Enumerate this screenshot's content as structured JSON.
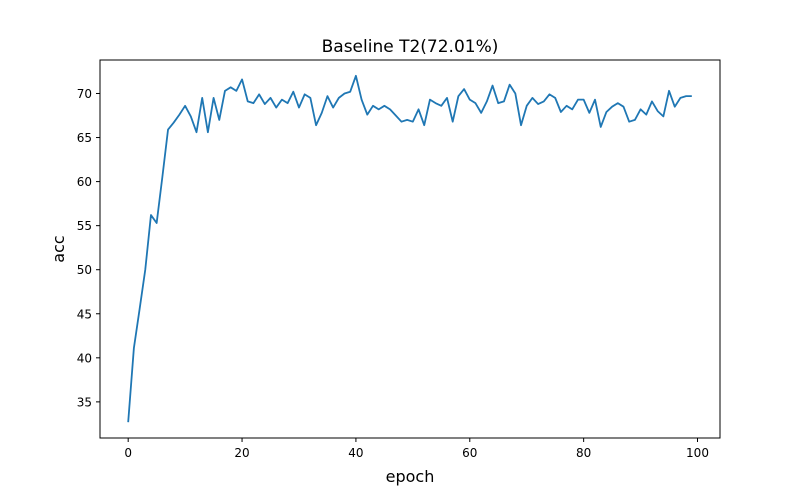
{
  "chart_data": {
    "type": "line",
    "title": "Baseline T2(72.01%)",
    "xlabel": "epoch",
    "ylabel": "acc",
    "xlim": [
      -4.95,
      103.95
    ],
    "ylim": [
      30.9,
      73.8
    ],
    "xticks": [
      0,
      20,
      40,
      60,
      80,
      100
    ],
    "yticks": [
      35,
      40,
      45,
      50,
      55,
      60,
      65,
      70
    ],
    "grid": false,
    "legend": "none",
    "line_color": "#1f77b4",
    "series": [
      {
        "x": [
          0,
          1,
          2,
          3,
          4,
          5,
          6,
          7,
          8,
          9,
          10,
          11,
          12,
          13,
          14,
          15,
          16,
          17,
          18,
          19,
          20,
          21,
          22,
          23,
          24,
          25,
          26,
          27,
          28,
          29,
          30,
          31,
          32,
          33,
          34,
          35,
          36,
          37,
          38,
          39,
          40,
          41,
          42,
          43,
          44,
          45,
          46,
          47,
          48,
          49,
          50,
          51,
          52,
          53,
          54,
          55,
          56,
          57,
          58,
          59,
          60,
          61,
          62,
          63,
          64,
          65,
          66,
          67,
          68,
          69,
          70,
          71,
          72,
          73,
          74,
          75,
          76,
          77,
          78,
          79,
          80,
          81,
          82,
          83,
          84,
          85,
          86,
          87,
          88,
          89,
          90,
          91,
          92,
          93,
          94,
          95,
          96,
          97,
          98,
          99
        ],
        "values": [
          32.7,
          41.1,
          45.5,
          50.0,
          56.2,
          55.3,
          60.5,
          65.9,
          66.7,
          67.6,
          68.6,
          67.4,
          65.6,
          69.5,
          65.6,
          69.5,
          67.0,
          70.3,
          70.7,
          70.3,
          71.6,
          69.1,
          68.9,
          69.9,
          68.8,
          69.5,
          68.4,
          69.3,
          68.9,
          70.2,
          68.4,
          69.9,
          69.5,
          66.4,
          67.8,
          69.7,
          68.4,
          69.5,
          70.0,
          70.2,
          72.0,
          69.3,
          67.6,
          68.6,
          68.2,
          68.6,
          68.2,
          67.5,
          66.8,
          67.0,
          66.8,
          68.2,
          66.4,
          69.3,
          68.9,
          68.6,
          69.5,
          66.8,
          69.7,
          70.5,
          69.3,
          68.9,
          67.8,
          69.1,
          70.9,
          68.9,
          69.1,
          71.0,
          70.0,
          66.4,
          68.6,
          69.5,
          68.8,
          69.1,
          69.9,
          69.5,
          67.9,
          68.6,
          68.2,
          69.3,
          69.3,
          67.8,
          69.3,
          66.2,
          67.9,
          68.5,
          68.9,
          68.5,
          66.8,
          67.0,
          68.2,
          67.6,
          69.1,
          68.0,
          67.4,
          70.3,
          68.5,
          69.5,
          69.7,
          69.7
        ]
      }
    ]
  }
}
